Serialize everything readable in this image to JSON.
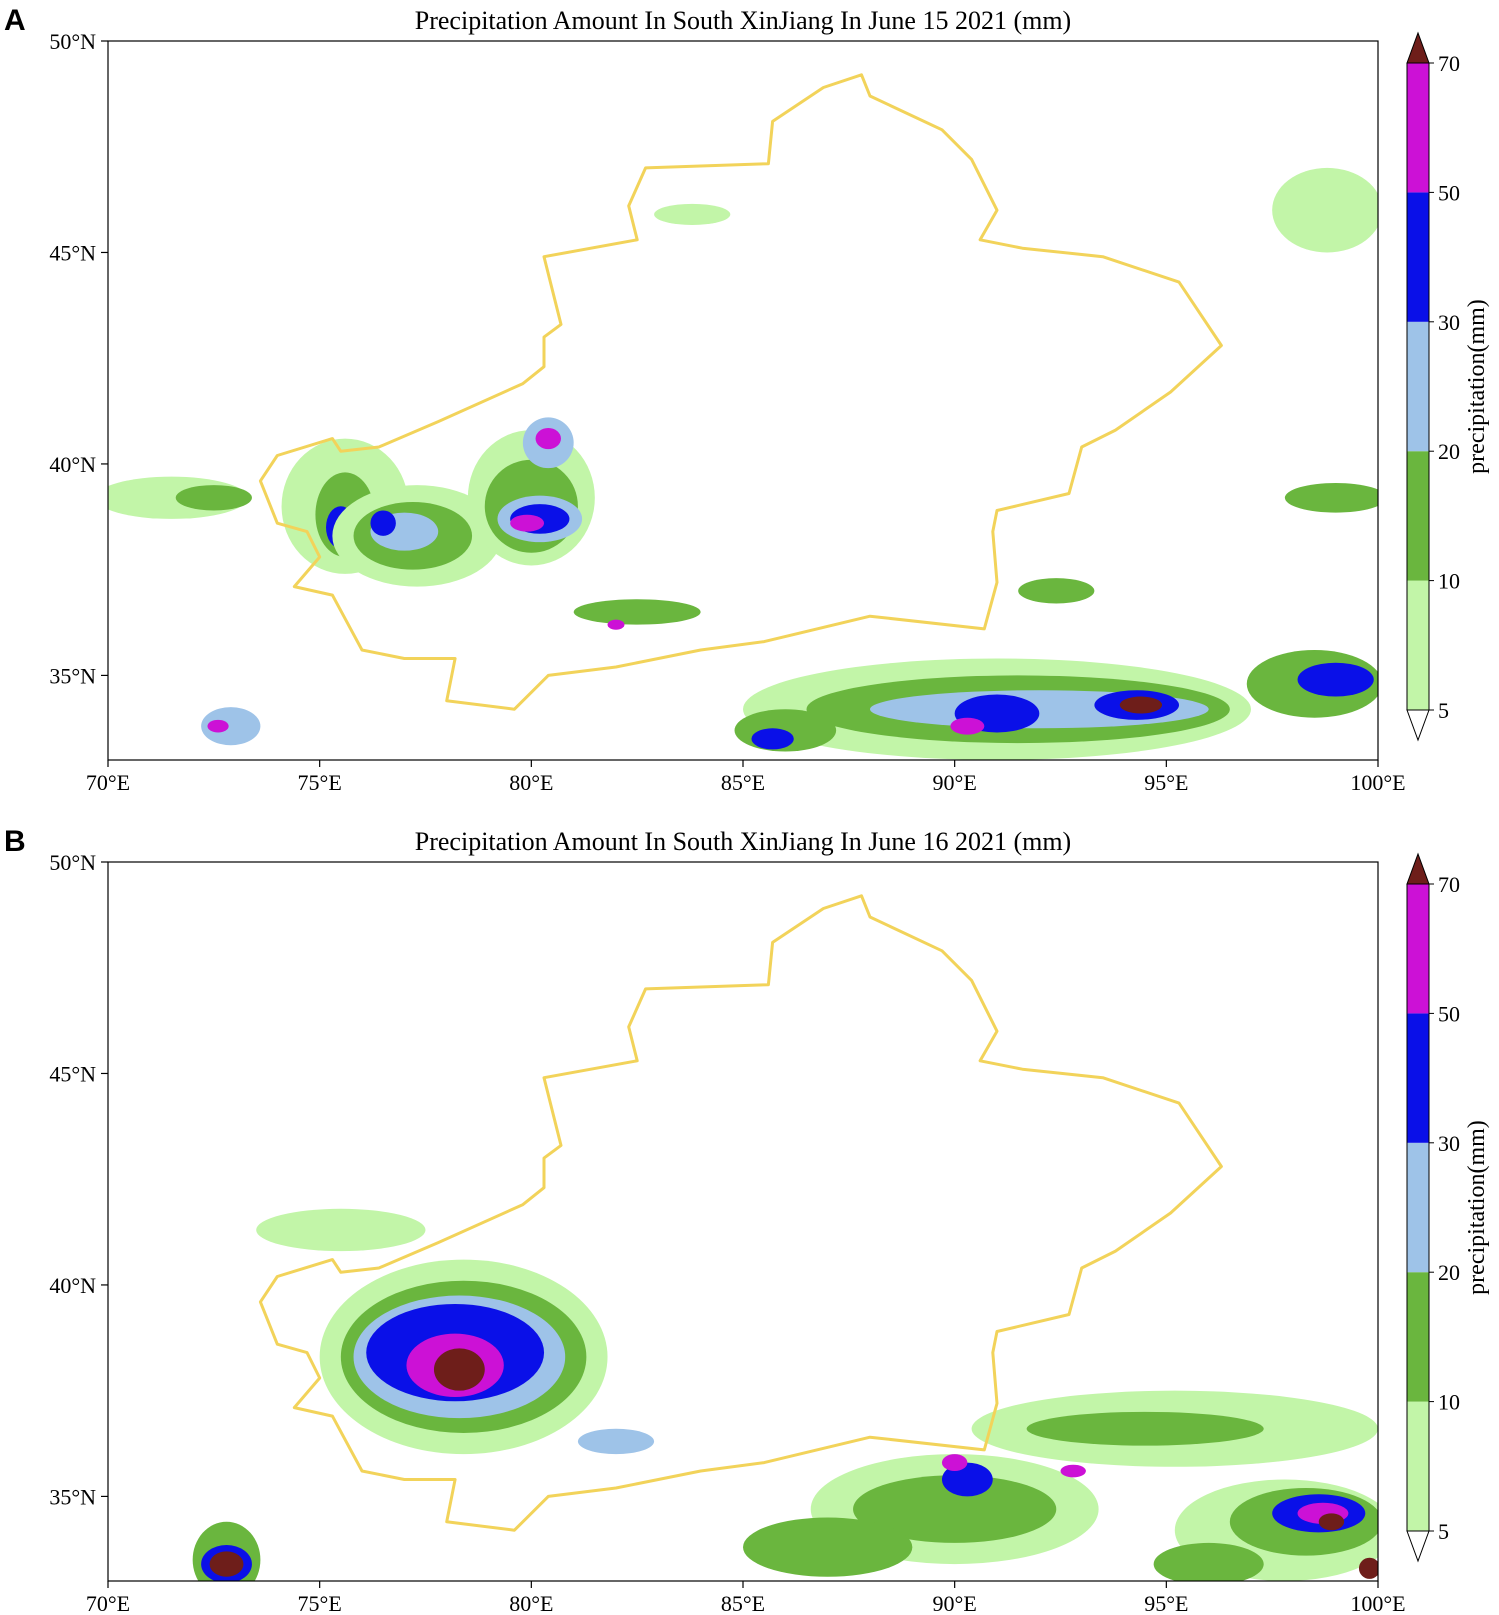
{
  "colors": {
    "lt5": "#ffffff",
    "b5_10": "#c2f5a8",
    "b10_20": "#6ab63e",
    "b20_30": "#9ec3e8",
    "b30_50": "#0a10e8",
    "b50_70": "#cc11d6",
    "gt70": "#6e1e1a",
    "border": "#f2d35a"
  },
  "colorbar": {
    "levels": [
      "5",
      "10",
      "20",
      "30",
      "50",
      "70"
    ],
    "label": "precipitation(mm)"
  },
  "axes": {
    "x_ticks": [
      "70°E",
      "75°E",
      "80°E",
      "85°E",
      "90°E",
      "95°E",
      "100°E"
    ],
    "y_ticks": [
      "50°N",
      "45°N",
      "40°N",
      "35°N"
    ]
  },
  "panels": [
    {
      "letter": "A",
      "title": "Precipitation Amount In South XinJiang In June 15 2021 (mm)"
    },
    {
      "letter": "B",
      "title": "Precipitation Amount In South XinJiang In June 16 2021 (mm)"
    }
  ],
  "chart_data": [
    {
      "type": "heatmap",
      "title": "Precipitation Amount In South XinJiang In June 15 2021 (mm)",
      "xlim": [
        70,
        100
      ],
      "ylim": [
        33,
        50
      ],
      "levels": [
        5,
        10,
        20,
        30,
        50,
        70
      ],
      "colorbar_label": "precipitation(mm)",
      "cells": [
        {
          "lon": 71.5,
          "lat": 39.2,
          "rx": 1.8,
          "ry": 0.5,
          "level": 1
        },
        {
          "lon": 72.5,
          "lat": 39.2,
          "rx": 0.9,
          "ry": 0.3,
          "level": 2
        },
        {
          "lon": 75.6,
          "lat": 39.0,
          "rx": 1.5,
          "ry": 1.6,
          "level": 1
        },
        {
          "lon": 75.6,
          "lat": 38.8,
          "rx": 0.7,
          "ry": 1.0,
          "level": 2
        },
        {
          "lon": 75.5,
          "lat": 38.5,
          "rx": 0.35,
          "ry": 0.5,
          "level": 4
        },
        {
          "lon": 77.3,
          "lat": 38.3,
          "rx": 2.0,
          "ry": 1.2,
          "level": 1
        },
        {
          "lon": 77.2,
          "lat": 38.3,
          "rx": 1.4,
          "ry": 0.8,
          "level": 2
        },
        {
          "lon": 77.0,
          "lat": 38.4,
          "rx": 0.8,
          "ry": 0.45,
          "level": 3
        },
        {
          "lon": 76.5,
          "lat": 38.6,
          "rx": 0.3,
          "ry": 0.3,
          "level": 4
        },
        {
          "lon": 80.0,
          "lat": 39.2,
          "rx": 1.5,
          "ry": 1.6,
          "level": 1
        },
        {
          "lon": 80.0,
          "lat": 39.0,
          "rx": 1.1,
          "ry": 1.1,
          "level": 2
        },
        {
          "lon": 80.2,
          "lat": 38.7,
          "rx": 1.0,
          "ry": 0.55,
          "level": 3
        },
        {
          "lon": 80.2,
          "lat": 38.7,
          "rx": 0.7,
          "ry": 0.35,
          "level": 4
        },
        {
          "lon": 79.9,
          "lat": 38.6,
          "rx": 0.4,
          "ry": 0.2,
          "level": 5
        },
        {
          "lon": 80.4,
          "lat": 40.5,
          "rx": 0.6,
          "ry": 0.6,
          "level": 3
        },
        {
          "lon": 80.4,
          "lat": 40.6,
          "rx": 0.3,
          "ry": 0.25,
          "level": 5
        },
        {
          "lon": 82.5,
          "lat": 36.5,
          "rx": 1.5,
          "ry": 0.3,
          "level": 2
        },
        {
          "lon": 82.0,
          "lat": 36.2,
          "rx": 0.2,
          "ry": 0.12,
          "level": 5
        },
        {
          "lon": 72.9,
          "lat": 33.8,
          "rx": 0.7,
          "ry": 0.45,
          "level": 3
        },
        {
          "lon": 72.6,
          "lat": 33.8,
          "rx": 0.25,
          "ry": 0.15,
          "level": 5
        },
        {
          "lon": 91.0,
          "lat": 34.2,
          "rx": 6.0,
          "ry": 1.2,
          "level": 1
        },
        {
          "lon": 91.5,
          "lat": 34.2,
          "rx": 5.0,
          "ry": 0.8,
          "level": 2
        },
        {
          "lon": 92.0,
          "lat": 34.2,
          "rx": 4.0,
          "ry": 0.45,
          "level": 3
        },
        {
          "lon": 91.0,
          "lat": 34.1,
          "rx": 1.0,
          "ry": 0.45,
          "level": 4
        },
        {
          "lon": 94.3,
          "lat": 34.3,
          "rx": 1.0,
          "ry": 0.35,
          "level": 4
        },
        {
          "lon": 94.4,
          "lat": 34.3,
          "rx": 0.5,
          "ry": 0.2,
          "level": 6
        },
        {
          "lon": 90.3,
          "lat": 33.8,
          "rx": 0.4,
          "ry": 0.2,
          "level": 5
        },
        {
          "lon": 98.5,
          "lat": 34.8,
          "rx": 1.6,
          "ry": 0.8,
          "level": 2
        },
        {
          "lon": 99.0,
          "lat": 34.9,
          "rx": 0.9,
          "ry": 0.4,
          "level": 4
        },
        {
          "lon": 86.0,
          "lat": 33.7,
          "rx": 1.2,
          "ry": 0.5,
          "level": 2
        },
        {
          "lon": 85.7,
          "lat": 33.5,
          "rx": 0.5,
          "ry": 0.25,
          "level": 4
        },
        {
          "lon": 98.8,
          "lat": 46.0,
          "rx": 1.3,
          "ry": 1.0,
          "level": 1
        },
        {
          "lon": 99.0,
          "lat": 39.2,
          "rx": 1.2,
          "ry": 0.35,
          "level": 2
        },
        {
          "lon": 92.4,
          "lat": 37.0,
          "rx": 0.9,
          "ry": 0.3,
          "level": 2
        },
        {
          "lon": 83.8,
          "lat": 45.9,
          "rx": 0.9,
          "ry": 0.25,
          "level": 1
        }
      ]
    },
    {
      "type": "heatmap",
      "title": "Precipitation Amount In South XinJiang In June 16 2021 (mm)",
      "xlim": [
        70,
        100
      ],
      "ylim": [
        33,
        50
      ],
      "levels": [
        5,
        10,
        20,
        30,
        50,
        70
      ],
      "colorbar_label": "precipitation(mm)",
      "cells": [
        {
          "lon": 78.4,
          "lat": 38.3,
          "rx": 3.4,
          "ry": 2.3,
          "level": 1
        },
        {
          "lon": 78.4,
          "lat": 38.3,
          "rx": 2.9,
          "ry": 1.8,
          "level": 2
        },
        {
          "lon": 78.3,
          "lat": 38.3,
          "rx": 2.5,
          "ry": 1.45,
          "level": 3
        },
        {
          "lon": 78.2,
          "lat": 38.4,
          "rx": 2.1,
          "ry": 1.15,
          "level": 4
        },
        {
          "lon": 78.2,
          "lat": 38.1,
          "rx": 1.15,
          "ry": 0.75,
          "level": 5
        },
        {
          "lon": 78.3,
          "lat": 38.0,
          "rx": 0.6,
          "ry": 0.5,
          "level": 6
        },
        {
          "lon": 75.5,
          "lat": 41.3,
          "rx": 2.0,
          "ry": 0.5,
          "level": 1
        },
        {
          "lon": 82.0,
          "lat": 36.3,
          "rx": 0.9,
          "ry": 0.3,
          "level": 3
        },
        {
          "lon": 72.8,
          "lat": 33.5,
          "rx": 0.8,
          "ry": 0.9,
          "level": 2
        },
        {
          "lon": 72.8,
          "lat": 33.4,
          "rx": 0.6,
          "ry": 0.45,
          "level": 4
        },
        {
          "lon": 72.8,
          "lat": 33.4,
          "rx": 0.4,
          "ry": 0.3,
          "level": 6
        },
        {
          "lon": 90.0,
          "lat": 34.7,
          "rx": 3.4,
          "ry": 1.3,
          "level": 1
        },
        {
          "lon": 90.0,
          "lat": 34.7,
          "rx": 2.4,
          "ry": 0.8,
          "level": 2
        },
        {
          "lon": 90.3,
          "lat": 35.4,
          "rx": 0.6,
          "ry": 0.4,
          "level": 4
        },
        {
          "lon": 90.0,
          "lat": 35.8,
          "rx": 0.3,
          "ry": 0.2,
          "level": 5
        },
        {
          "lon": 95.2,
          "lat": 36.6,
          "rx": 4.8,
          "ry": 0.9,
          "level": 1
        },
        {
          "lon": 94.5,
          "lat": 36.6,
          "rx": 2.8,
          "ry": 0.4,
          "level": 2
        },
        {
          "lon": 92.8,
          "lat": 35.6,
          "rx": 0.3,
          "ry": 0.15,
          "level": 5
        },
        {
          "lon": 97.8,
          "lat": 34.2,
          "rx": 2.6,
          "ry": 1.2,
          "level": 1
        },
        {
          "lon": 98.3,
          "lat": 34.4,
          "rx": 1.8,
          "ry": 0.8,
          "level": 2
        },
        {
          "lon": 98.6,
          "lat": 34.6,
          "rx": 1.1,
          "ry": 0.45,
          "level": 4
        },
        {
          "lon": 98.7,
          "lat": 34.6,
          "rx": 0.6,
          "ry": 0.25,
          "level": 5
        },
        {
          "lon": 98.9,
          "lat": 34.4,
          "rx": 0.3,
          "ry": 0.2,
          "level": 6
        },
        {
          "lon": 96.0,
          "lat": 33.4,
          "rx": 1.3,
          "ry": 0.5,
          "level": 2
        },
        {
          "lon": 99.8,
          "lat": 33.3,
          "rx": 0.25,
          "ry": 0.25,
          "level": 6
        },
        {
          "lon": 87.0,
          "lat": 33.8,
          "rx": 2.0,
          "ry": 0.7,
          "level": 2
        }
      ]
    }
  ]
}
